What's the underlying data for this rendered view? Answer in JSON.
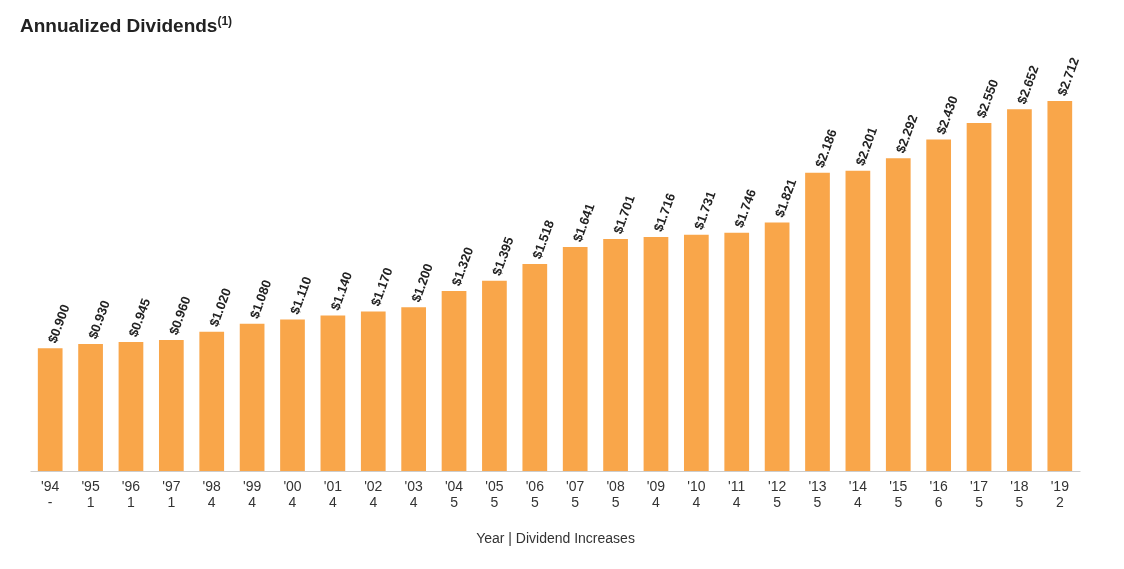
{
  "chart_data": {
    "type": "bar",
    "title": "Annualized Dividends$^{(1)}$",
    "xlabel": "Year | Dividend Increases",
    "categories": [
      "'94\n-",
      "'95\n1",
      "'96\n1",
      "'97\n1",
      "'98\n4",
      "'99\n4",
      "'00\n4",
      "'01\n4",
      "'02\n4",
      "'03\n4",
      "'04\n5",
      "'05\n5",
      "'06\n5",
      "'07\n5",
      "'08\n5",
      "'09\n4",
      "'10\n4",
      "'11\n4",
      "'12\n5",
      "'13\n5",
      "'14\n4",
      "'15\n5",
      "'16\n6",
      "'17\n5",
      "'18\n5",
      "'19\n2"
    ],
    "values": [
      0.9,
      0.93,
      0.945,
      0.96,
      1.02,
      1.08,
      1.11,
      1.14,
      1.17,
      1.2,
      1.32,
      1.395,
      1.518,
      1.641,
      1.701,
      1.716,
      1.731,
      1.746,
      1.821,
      2.186,
      2.201,
      2.292,
      2.43,
      2.55,
      2.652,
      2.712
    ],
    "value_labels": [
      "$0.900",
      "$0.930",
      "$0.945",
      "$0.960",
      "$1.020",
      "$1.080",
      "$1.110",
      "$1.140",
      "$1.170",
      "$1.200",
      "$1.320",
      "$1.395",
      "$1.518",
      "$1.641",
      "$1.701",
      "$1.716",
      "$1.731",
      "$1.746",
      "$1.821",
      "$2.186",
      "$2.201",
      "$2.292",
      "$2.430",
      "$2.550",
      "$2.652",
      "$2.712"
    ],
    "color": "#f9a64a",
    "tick_labels": "x",
    "grid": false
  }
}
